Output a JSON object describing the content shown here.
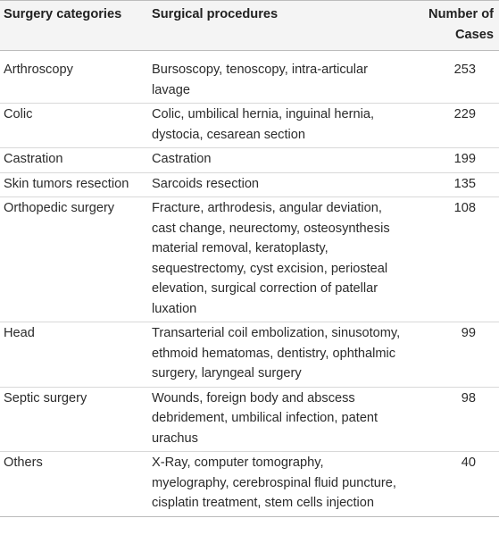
{
  "table": {
    "headers": {
      "category": "Surgery categories",
      "procedures": "Surgical procedures",
      "cases": "Number of Cases"
    },
    "rows": [
      {
        "category": "Arthroscopy",
        "procedures": "Bursoscopy, tenoscopy, intra-articular lavage",
        "cases": "253"
      },
      {
        "category": "Colic",
        "procedures": "Colic, umbilical hernia, inguinal hernia, dystocia, cesarean section",
        "cases": "229"
      },
      {
        "category": "Castration",
        "procedures": "Castration",
        "cases": "199"
      },
      {
        "category": "Skin tumors resection",
        "procedures": "Sarcoids resection",
        "cases": "135"
      },
      {
        "category": "Orthopedic surgery",
        "procedures": "Fracture, arthrodesis, angular deviation, cast change, neurectomy, osteosynthesis material removal, keratoplasty, sequestrectomy, cyst excision, periosteal elevation, surgical correction of patellar luxation",
        "cases": "108"
      },
      {
        "category": "Head",
        "procedures": "Transarterial coil embolization, sinusotomy, ethmoid hematomas, dentistry, ophthalmic surgery, laryngeal surgery",
        "cases": "99"
      },
      {
        "category": "Septic surgery",
        "procedures": "Wounds, foreign body and abscess debridement, umbilical infection, patent urachus",
        "cases": "98"
      },
      {
        "category": "Others",
        "procedures": "X-Ray, computer tomography, myelography, cerebrospinal fluid puncture, cisplatin treatment, stem cells injection",
        "cases": "40"
      }
    ]
  }
}
